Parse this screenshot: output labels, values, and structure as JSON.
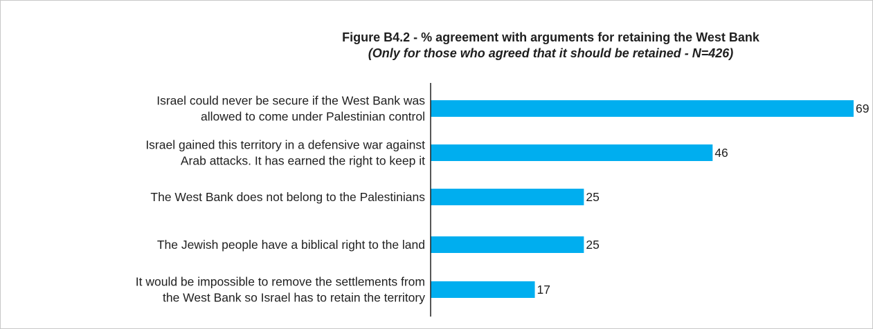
{
  "chart_data": {
    "type": "bar",
    "orientation": "horizontal",
    "title": "Figure B4.2 - % agreement with arguments for retaining the West Bank",
    "subtitle": "(Only for those who agreed that it should be retained - N=426)",
    "categories": [
      [
        "Israel could never be secure if the West Bank was",
        "allowed to come under Palestinian control"
      ],
      [
        "Israel gained this territory in a defensive war against",
        "Arab attacks. It has earned the right to keep it"
      ],
      [
        "The West Bank does not belong to the Palestinians"
      ],
      [
        "The Jewish people have a biblical right to the land"
      ],
      [
        "It would be impossible to remove the settlements from",
        "the West Bank so Israel has to retain the territory"
      ]
    ],
    "values": [
      69,
      46,
      25,
      25,
      17
    ],
    "value_labels": [
      "69",
      "46",
      "25",
      "25",
      "17"
    ],
    "xlim": [
      0,
      69
    ],
    "bar_color": "#00aeef",
    "grid": false,
    "legend": "none"
  }
}
